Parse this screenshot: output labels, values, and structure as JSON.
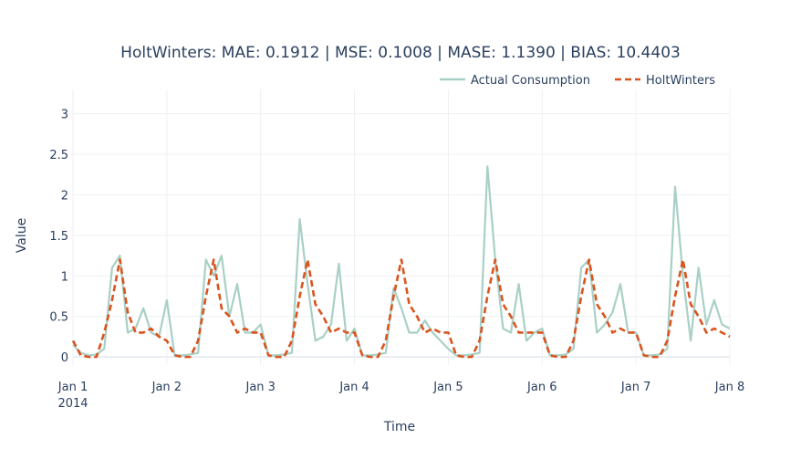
{
  "chart_data": {
    "type": "line",
    "title": "HoltWinters: MAE: 0.1912 | MSE: 0.1008 | MASE: 1.1390 | BIAS: 10.4403",
    "xlabel": "Time",
    "ylabel": "Value",
    "ylim": [
      -0.1,
      3.3
    ],
    "y_ticks": [
      0,
      0.5,
      1,
      1.5,
      2,
      2.5,
      3
    ],
    "y_tick_labels": [
      "0",
      "0.5",
      "1",
      "1.5",
      "2",
      "2.5",
      "3"
    ],
    "x_ticks": [
      {
        "value": "2014-01-01",
        "label": "Jan 1",
        "sublabel": "2014"
      },
      {
        "value": "2014-01-02",
        "label": "Jan 2",
        "sublabel": ""
      },
      {
        "value": "2014-01-03",
        "label": "Jan 3",
        "sublabel": ""
      },
      {
        "value": "2014-01-04",
        "label": "Jan 4",
        "sublabel": ""
      },
      {
        "value": "2014-01-05",
        "label": "Jan 5",
        "sublabel": ""
      },
      {
        "value": "2014-01-06",
        "label": "Jan 6",
        "sublabel": ""
      },
      {
        "value": "2014-01-07",
        "label": "Jan 7",
        "sublabel": ""
      },
      {
        "value": "2014-01-08",
        "label": "Jan 8",
        "sublabel": ""
      }
    ],
    "xlim": [
      "2014-01-01 00:00",
      "2014-01-08 00:00"
    ],
    "grid": true,
    "legend_position": "top-right",
    "series": [
      {
        "name": "Actual Consumption",
        "color": "#a8d0c6",
        "dash": "solid",
        "x": [
          "2014-01-01 00:00",
          "2014-01-01 02:00",
          "2014-01-01 04:00",
          "2014-01-01 06:00",
          "2014-01-01 08:00",
          "2014-01-01 10:00",
          "2014-01-01 12:00",
          "2014-01-01 14:00",
          "2014-01-01 16:00",
          "2014-01-01 18:00",
          "2014-01-01 20:00",
          "2014-01-01 22:00",
          "2014-01-02 00:00",
          "2014-01-02 02:00",
          "2014-01-02 04:00",
          "2014-01-02 06:00",
          "2014-01-02 08:00",
          "2014-01-02 10:00",
          "2014-01-02 12:00",
          "2014-01-02 14:00",
          "2014-01-02 16:00",
          "2014-01-02 18:00",
          "2014-01-02 20:00",
          "2014-01-02 22:00",
          "2014-01-03 00:00",
          "2014-01-03 02:00",
          "2014-01-03 04:00",
          "2014-01-03 06:00",
          "2014-01-03 08:00",
          "2014-01-03 10:00",
          "2014-01-03 12:00",
          "2014-01-03 14:00",
          "2014-01-03 16:00",
          "2014-01-03 18:00",
          "2014-01-03 20:00",
          "2014-01-03 22:00",
          "2014-01-04 00:00",
          "2014-01-04 02:00",
          "2014-01-04 04:00",
          "2014-01-04 06:00",
          "2014-01-04 08:00",
          "2014-01-04 10:00",
          "2014-01-04 12:00",
          "2014-01-04 14:00",
          "2014-01-04 16:00",
          "2014-01-04 18:00",
          "2014-01-04 20:00",
          "2014-01-04 22:00",
          "2014-01-05 00:00",
          "2014-01-05 02:00",
          "2014-01-05 04:00",
          "2014-01-05 06:00",
          "2014-01-05 08:00",
          "2014-01-05 10:00",
          "2014-01-05 12:00",
          "2014-01-05 14:00",
          "2014-01-05 16:00",
          "2014-01-05 18:00",
          "2014-01-05 20:00",
          "2014-01-05 22:00",
          "2014-01-06 00:00",
          "2014-01-06 02:00",
          "2014-01-06 04:00",
          "2014-01-06 06:00",
          "2014-01-06 08:00",
          "2014-01-06 10:00",
          "2014-01-06 12:00",
          "2014-01-06 14:00",
          "2014-01-06 16:00",
          "2014-01-06 18:00",
          "2014-01-06 20:00",
          "2014-01-06 22:00",
          "2014-01-07 00:00",
          "2014-01-07 02:00",
          "2014-01-07 04:00",
          "2014-01-07 06:00",
          "2014-01-07 08:00",
          "2014-01-07 10:00",
          "2014-01-07 12:00",
          "2014-01-07 14:00",
          "2014-01-07 16:00",
          "2014-01-07 18:00",
          "2014-01-07 20:00",
          "2014-01-07 22:00",
          "2014-01-08 00:00"
        ],
        "y": [
          0.15,
          0.05,
          0.02,
          0.03,
          0.1,
          1.1,
          1.25,
          0.3,
          0.35,
          0.6,
          0.3,
          0.25,
          0.7,
          0.02,
          0.02,
          0.03,
          0.05,
          1.2,
          1.0,
          1.25,
          0.5,
          0.9,
          0.3,
          0.3,
          0.4,
          0.02,
          0.02,
          0.03,
          0.05,
          1.7,
          0.9,
          0.2,
          0.25,
          0.4,
          1.15,
          0.2,
          0.35,
          0.02,
          0.02,
          0.03,
          0.05,
          0.85,
          0.6,
          0.3,
          0.3,
          0.45,
          0.3,
          0.2,
          0.1,
          0.02,
          0.02,
          0.03,
          0.05,
          2.35,
          1.2,
          0.35,
          0.3,
          0.9,
          0.2,
          0.3,
          0.35,
          0.02,
          0.02,
          0.03,
          0.1,
          1.1,
          1.2,
          0.3,
          0.4,
          0.55,
          0.9,
          0.3,
          0.3,
          0.02,
          0.02,
          0.03,
          0.1,
          2.1,
          1.0,
          0.2,
          1.1,
          0.4,
          0.7,
          0.4,
          0.35
        ]
      },
      {
        "name": "HoltWinters",
        "color": "#d9541e",
        "dash": "dash",
        "x": [
          "2014-01-01 00:00",
          "2014-01-01 02:00",
          "2014-01-01 04:00",
          "2014-01-01 06:00",
          "2014-01-01 08:00",
          "2014-01-01 10:00",
          "2014-01-01 12:00",
          "2014-01-01 14:00",
          "2014-01-01 16:00",
          "2014-01-01 18:00",
          "2014-01-01 20:00",
          "2014-01-01 22:00",
          "2014-01-02 00:00",
          "2014-01-02 02:00",
          "2014-01-02 04:00",
          "2014-01-02 06:00",
          "2014-01-02 08:00",
          "2014-01-02 10:00",
          "2014-01-02 12:00",
          "2014-01-02 14:00",
          "2014-01-02 16:00",
          "2014-01-02 18:00",
          "2014-01-02 20:00",
          "2014-01-02 22:00",
          "2014-01-03 00:00",
          "2014-01-03 02:00",
          "2014-01-03 04:00",
          "2014-01-03 06:00",
          "2014-01-03 08:00",
          "2014-01-03 10:00",
          "2014-01-03 12:00",
          "2014-01-03 14:00",
          "2014-01-03 16:00",
          "2014-01-03 18:00",
          "2014-01-03 20:00",
          "2014-01-03 22:00",
          "2014-01-04 00:00",
          "2014-01-04 02:00",
          "2014-01-04 04:00",
          "2014-01-04 06:00",
          "2014-01-04 08:00",
          "2014-01-04 10:00",
          "2014-01-04 12:00",
          "2014-01-04 14:00",
          "2014-01-04 16:00",
          "2014-01-04 18:00",
          "2014-01-04 20:00",
          "2014-01-04 22:00",
          "2014-01-05 00:00",
          "2014-01-05 02:00",
          "2014-01-05 04:00",
          "2014-01-05 06:00",
          "2014-01-05 08:00",
          "2014-01-05 10:00",
          "2014-01-05 12:00",
          "2014-01-05 14:00",
          "2014-01-05 16:00",
          "2014-01-05 18:00",
          "2014-01-05 20:00",
          "2014-01-05 22:00",
          "2014-01-06 00:00",
          "2014-01-06 02:00",
          "2014-01-06 04:00",
          "2014-01-06 06:00",
          "2014-01-06 08:00",
          "2014-01-06 10:00",
          "2014-01-06 12:00",
          "2014-01-06 14:00",
          "2014-01-06 16:00",
          "2014-01-06 18:00",
          "2014-01-06 20:00",
          "2014-01-06 22:00",
          "2014-01-07 00:00",
          "2014-01-07 02:00",
          "2014-01-07 04:00",
          "2014-01-07 06:00",
          "2014-01-07 08:00",
          "2014-01-07 10:00",
          "2014-01-07 12:00",
          "2014-01-07 14:00",
          "2014-01-07 16:00",
          "2014-01-07 18:00",
          "2014-01-07 20:00",
          "2014-01-07 22:00",
          "2014-01-08 00:00"
        ],
        "y": [
          0.2,
          0.02,
          0.0,
          0.0,
          0.3,
          0.7,
          1.2,
          0.55,
          0.3,
          0.3,
          0.35,
          0.25,
          0.2,
          0.02,
          0.0,
          0.0,
          0.2,
          0.75,
          1.2,
          0.6,
          0.5,
          0.3,
          0.35,
          0.3,
          0.3,
          0.02,
          0.0,
          0.0,
          0.2,
          0.75,
          1.2,
          0.65,
          0.5,
          0.3,
          0.35,
          0.3,
          0.3,
          0.02,
          0.0,
          0.0,
          0.2,
          0.75,
          1.2,
          0.65,
          0.5,
          0.3,
          0.35,
          0.3,
          0.3,
          0.02,
          0.0,
          0.0,
          0.2,
          0.75,
          1.2,
          0.65,
          0.5,
          0.3,
          0.3,
          0.3,
          0.3,
          0.02,
          0.0,
          0.0,
          0.2,
          0.75,
          1.2,
          0.65,
          0.5,
          0.3,
          0.35,
          0.3,
          0.3,
          0.02,
          0.0,
          0.0,
          0.2,
          0.75,
          1.2,
          0.65,
          0.5,
          0.3,
          0.35,
          0.3,
          0.25
        ]
      }
    ]
  }
}
